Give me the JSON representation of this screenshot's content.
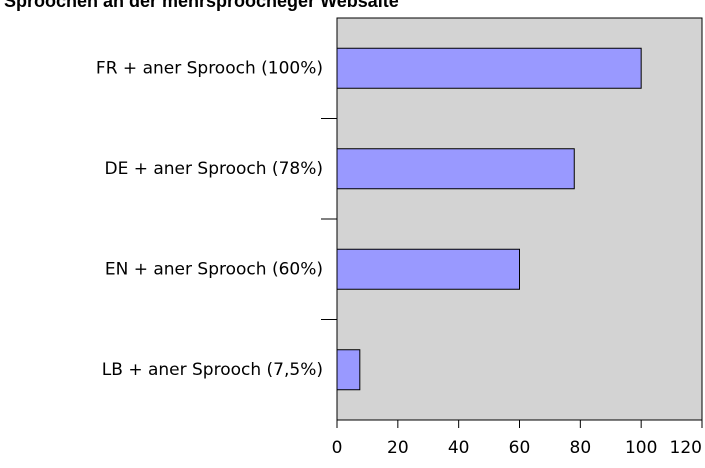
{
  "chart_data": {
    "type": "bar",
    "orientation": "horizontal",
    "title": "Sproochen an der mehrsproocheger Websäite",
    "categories": [
      "FR + aner Sprooch (100%)",
      "DE + aner Sprooch (78%)",
      "EN + aner Sprooch (60%)",
      "LB + aner Sprooch (7,5%)"
    ],
    "values": [
      100,
      78,
      60,
      7.5
    ],
    "color": "#9999ff",
    "background": "#d3d3d3",
    "xlim": [
      0,
      120
    ],
    "xticks": [
      0,
      20,
      40,
      60,
      80,
      100,
      120
    ]
  }
}
